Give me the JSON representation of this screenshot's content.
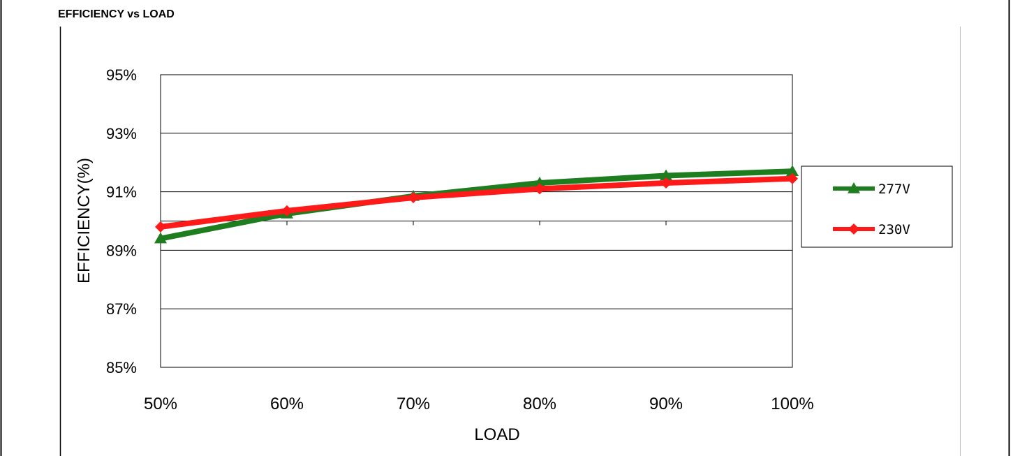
{
  "header": {
    "title": "EFFICIENCY vs LOAD"
  },
  "chart_data": {
    "type": "line",
    "title": "",
    "xlabel": "LOAD",
    "ylabel": "EFFICIENCY(%)",
    "categories": [
      "50%",
      "60%",
      "70%",
      "80%",
      "90%",
      "100%"
    ],
    "yticks": [
      "85%",
      "87%",
      "89%",
      "91%",
      "93%",
      "95%"
    ],
    "ylim": [
      85,
      95
    ],
    "grid": true,
    "legend_position": "right",
    "series": [
      {
        "name": "277V",
        "color": "#1e7d1e",
        "marker": "triangle",
        "values": [
          89.4,
          90.25,
          90.85,
          91.3,
          91.55,
          91.7
        ]
      },
      {
        "name": "230V",
        "color": "#ff1a1a",
        "marker": "diamond",
        "values": [
          89.8,
          90.35,
          90.8,
          91.1,
          91.3,
          91.45
        ]
      }
    ]
  }
}
